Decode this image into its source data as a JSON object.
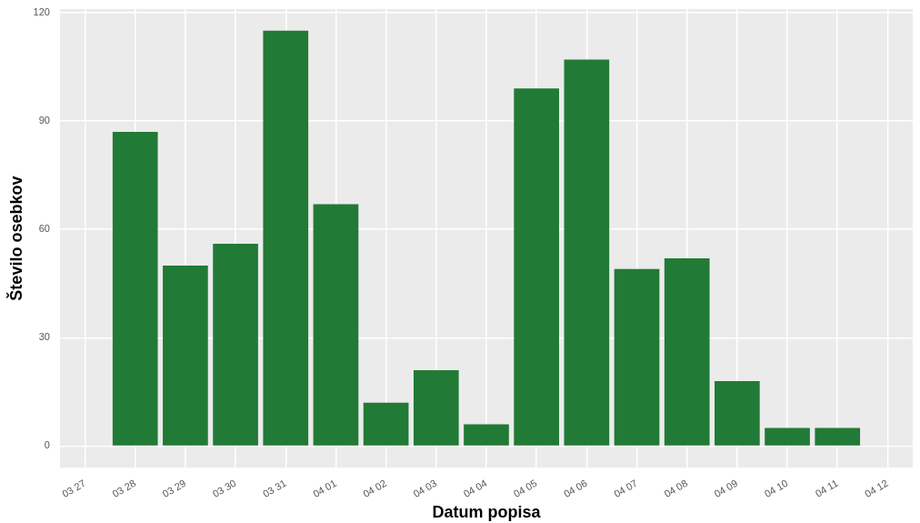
{
  "chart_data": {
    "type": "bar",
    "xlabel": "Datum popisa",
    "ylabel": "Število osebkov",
    "categories": [
      "03 27",
      "03 28",
      "03 29",
      "03 30",
      "03 31",
      "04 01",
      "04 02",
      "04 03",
      "04 04",
      "04 05",
      "04 06",
      "04 07",
      "04 08",
      "04 09",
      "04 10",
      "04 11",
      "04 12"
    ],
    "values": [
      null,
      87,
      50,
      56,
      115,
      67,
      12,
      21,
      6,
      99,
      107,
      49,
      52,
      18,
      5,
      5,
      null
    ],
    "color": "#217a35",
    "ylim": [
      -6,
      121
    ],
    "yticks": [
      0,
      30,
      60,
      90,
      120
    ],
    "grid": true
  }
}
